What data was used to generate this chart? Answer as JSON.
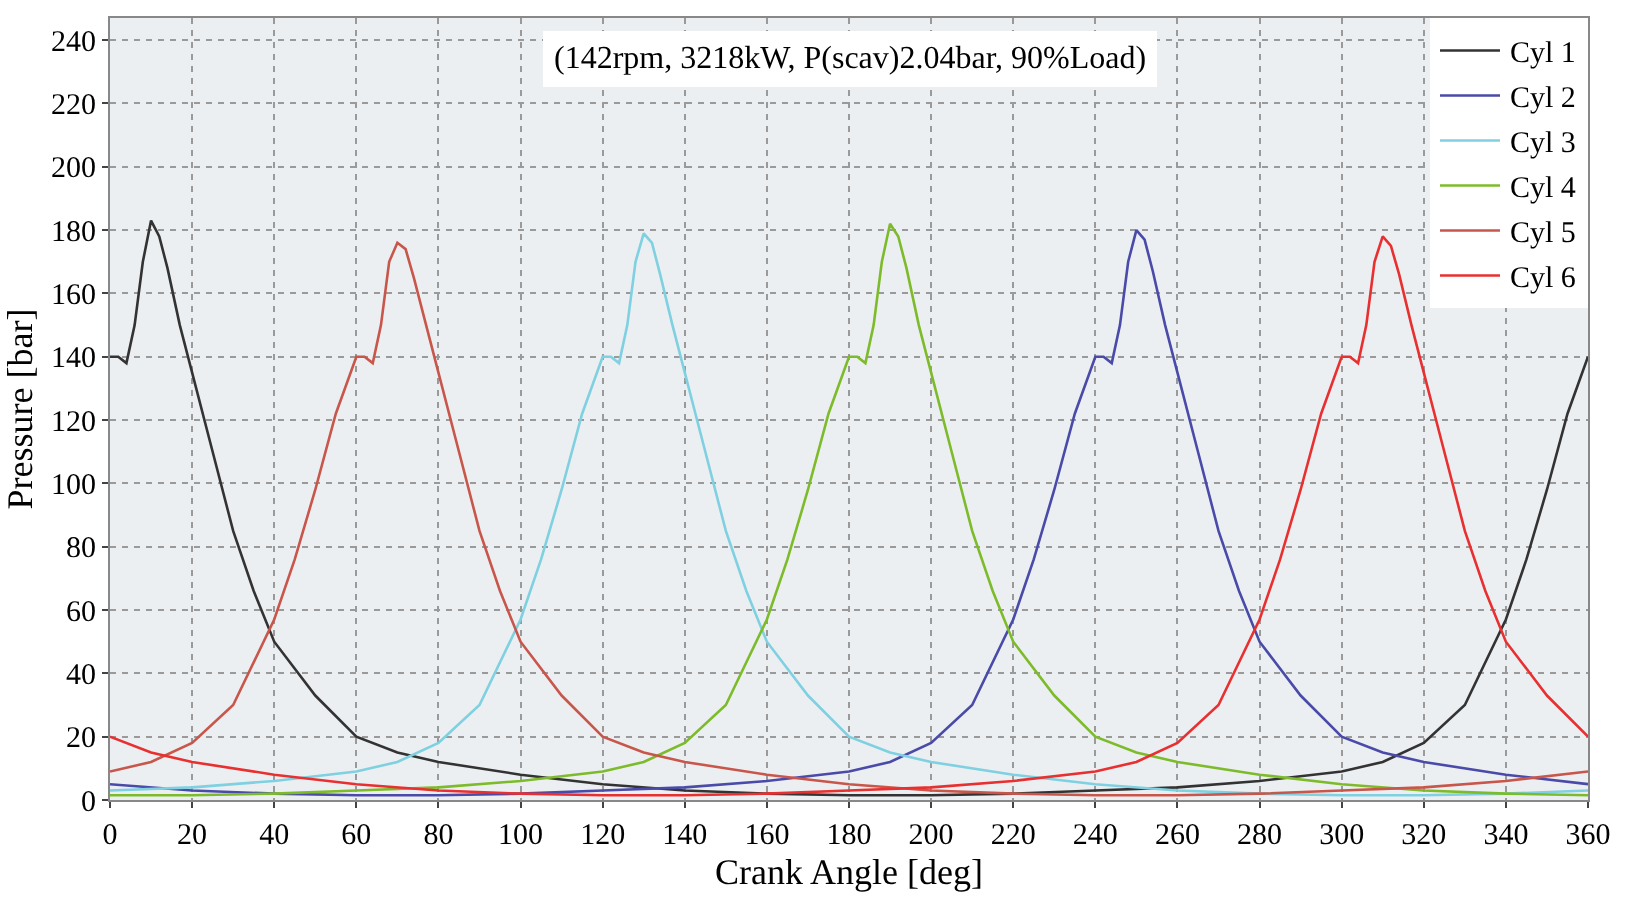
{
  "chart_data": {
    "type": "line",
    "xlabel": "Crank Angle [deg]",
    "ylabel": "Pressure [bar]",
    "annotations": [
      "(142rpm, 3218kW, P(scav)2.04bar, 90%Load)"
    ],
    "xlim": [
      0,
      360
    ],
    "xticks": [
      0,
      20,
      40,
      60,
      80,
      100,
      120,
      140,
      160,
      180,
      200,
      220,
      240,
      260,
      280,
      300,
      320,
      340,
      360
    ],
    "ylim": [
      0,
      247
    ],
    "yticks": [
      0,
      20,
      40,
      60,
      80,
      100,
      120,
      140,
      160,
      180,
      200,
      220,
      240
    ],
    "grid": true,
    "legend": "top right",
    "marker": "none",
    "line_style": "solid",
    "series": [
      {
        "name": "Cyl 1",
        "color": "#333333",
        "x": [
          0,
          2,
          4,
          6,
          8,
          10,
          12,
          14,
          17,
          20,
          25,
          30,
          35,
          40,
          50,
          60,
          70,
          80,
          100,
          120,
          140,
          160,
          180,
          200,
          220,
          240,
          260,
          280,
          300,
          310,
          320,
          330,
          340,
          345,
          350,
          355,
          360
        ],
        "values": [
          140,
          140,
          138,
          150,
          170,
          183,
          178,
          168,
          150,
          135,
          110,
          85,
          66,
          50,
          33,
          20,
          15,
          12,
          8,
          5,
          3,
          2,
          1.5,
          1.5,
          2,
          3,
          4,
          6,
          9,
          12,
          18,
          30,
          57,
          76,
          98,
          122,
          140
        ]
      },
      {
        "name": "Cyl 2",
        "color": "#4a4aa8",
        "x": [
          0,
          20,
          40,
          60,
          80,
          100,
          120,
          140,
          160,
          180,
          190,
          200,
          210,
          220,
          225,
          230,
          235,
          240,
          242,
          244,
          246,
          248,
          250,
          252,
          254,
          257,
          260,
          265,
          270,
          275,
          280,
          290,
          300,
          310,
          320,
          340,
          360
        ],
        "values": [
          5,
          3,
          2,
          1.5,
          1.5,
          2,
          3,
          4,
          6,
          9,
          12,
          18,
          30,
          57,
          76,
          98,
          122,
          140,
          140,
          138,
          150,
          170,
          180,
          177,
          167,
          150,
          135,
          110,
          85,
          66,
          50,
          33,
          20,
          15,
          12,
          8,
          5
        ]
      },
      {
        "name": "Cyl 3",
        "color": "#7fd0e0",
        "x": [
          0,
          20,
          40,
          60,
          70,
          80,
          90,
          100,
          105,
          110,
          115,
          120,
          122,
          124,
          126,
          128,
          130,
          132,
          134,
          137,
          140,
          145,
          150,
          155,
          160,
          170,
          180,
          190,
          200,
          220,
          240,
          260,
          280,
          300,
          320,
          340,
          360
        ],
        "values": [
          3,
          4,
          6,
          9,
          12,
          18,
          30,
          57,
          76,
          98,
          122,
          140,
          140,
          138,
          150,
          170,
          179,
          176,
          166,
          150,
          135,
          110,
          85,
          66,
          50,
          33,
          20,
          15,
          12,
          8,
          5,
          3,
          2,
          1.5,
          1.5,
          2,
          3
        ]
      },
      {
        "name": "Cyl 4",
        "color": "#7dbb2a",
        "x": [
          0,
          20,
          40,
          60,
          80,
          100,
          120,
          130,
          140,
          150,
          160,
          165,
          170,
          175,
          180,
          182,
          184,
          186,
          188,
          190,
          192,
          194,
          197,
          200,
          205,
          210,
          215,
          220,
          230,
          240,
          250,
          260,
          280,
          300,
          320,
          340,
          360
        ],
        "values": [
          1.5,
          1.5,
          2,
          3,
          4,
          6,
          9,
          12,
          18,
          30,
          57,
          76,
          98,
          122,
          140,
          140,
          138,
          150,
          170,
          182,
          178,
          168,
          150,
          135,
          110,
          85,
          66,
          50,
          33,
          20,
          15,
          12,
          8,
          5,
          3,
          2,
          1.5
        ]
      },
      {
        "name": "Cyl 5",
        "color": "#c8564a",
        "x": [
          0,
          10,
          20,
          30,
          40,
          45,
          50,
          55,
          60,
          62,
          64,
          66,
          68,
          70,
          72,
          74,
          77,
          80,
          85,
          90,
          95,
          100,
          110,
          120,
          130,
          140,
          160,
          180,
          200,
          220,
          240,
          260,
          280,
          300,
          320,
          340,
          360
        ],
        "values": [
          9,
          12,
          18,
          30,
          57,
          76,
          98,
          122,
          140,
          140,
          138,
          150,
          170,
          176,
          174,
          165,
          150,
          135,
          110,
          85,
          66,
          50,
          33,
          20,
          15,
          12,
          8,
          5,
          3,
          2,
          1.5,
          1.5,
          2,
          3,
          4,
          6,
          9
        ]
      },
      {
        "name": "Cyl 6",
        "color": "#e83030",
        "x": [
          0,
          10,
          20,
          40,
          60,
          80,
          100,
          120,
          140,
          160,
          180,
          200,
          220,
          240,
          250,
          260,
          270,
          280,
          285,
          290,
          295,
          300,
          302,
          304,
          306,
          308,
          310,
          312,
          314,
          317,
          320,
          325,
          330,
          335,
          340,
          350,
          360
        ],
        "values": [
          20,
          15,
          12,
          8,
          5,
          3,
          2,
          1.5,
          1.5,
          2,
          3,
          4,
          6,
          9,
          12,
          18,
          30,
          57,
          76,
          98,
          122,
          140,
          140,
          138,
          150,
          170,
          178,
          175,
          166,
          150,
          135,
          110,
          85,
          66,
          50,
          33,
          20
        ]
      }
    ]
  }
}
